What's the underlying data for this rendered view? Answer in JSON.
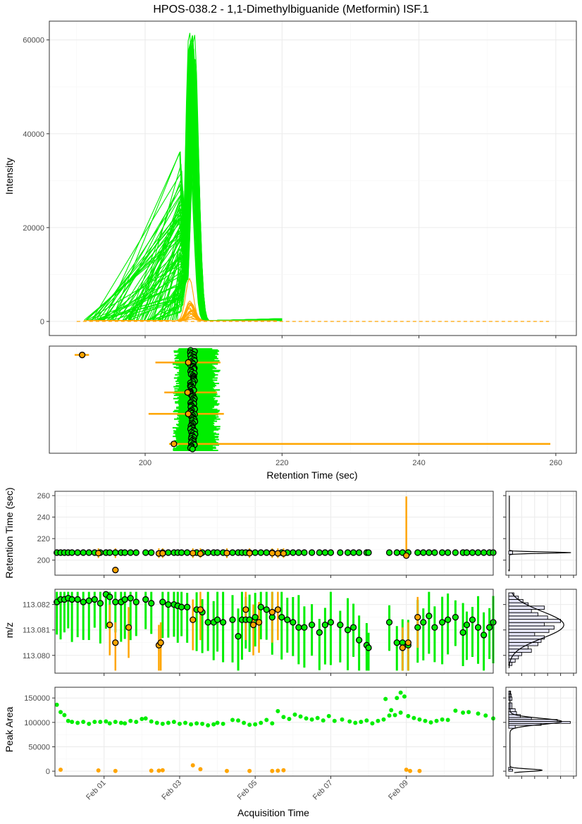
{
  "title": "HPOS-038.2 - 1,1-Dimethylbiguanide (Metformin) ISF.1",
  "colors": {
    "good": "#00ee00",
    "flagged": "#ffa500",
    "hist_fill": "#e6e6fa",
    "outline": "#000000"
  },
  "chart_data": [
    {
      "id": "eic",
      "type": "line",
      "ylabel": "Intensity",
      "xlim": [
        186,
        263
      ],
      "ylim": [
        -3000,
        64000
      ],
      "yticks": [
        0,
        20000,
        40000,
        60000
      ],
      "ytick_labels": [
        "0",
        "20000",
        "40000",
        "60000"
      ],
      "xticks": [
        200,
        220,
        240,
        260
      ],
      "grid": true,
      "series": [
        {
          "color": "good",
          "count": 95,
          "apex_rt_range": [
            206.4,
            207.2
          ],
          "apex_intensity_range": [
            34000,
            62500
          ],
          "start_rt_range": [
            191,
            205
          ],
          "end_rt": 220
        },
        {
          "color": "flagged",
          "count": 20,
          "apex_rt_range": [
            206.3,
            207.0
          ],
          "apex_intensity_range": [
            300,
            9000
          ],
          "start_rt": 190,
          "end_rt": 259
        }
      ]
    },
    {
      "id": "rt_ranges",
      "type": "scatter",
      "xlabel": "Retention Time (sec)",
      "xlim": [
        186,
        263
      ],
      "xticks": [
        200,
        220,
        240,
        260
      ],
      "xtick_labels": [
        "200",
        "220",
        "240",
        "260"
      ],
      "description_series": "horizontal peak-boundary ranges with apex points",
      "good_range": [
        204,
        211
      ],
      "good_apex_range": [
        206.6,
        207.3
      ],
      "flagged_rows": [
        {
          "apex": 190.8,
          "start": 189.7,
          "end": 191.8,
          "row": 0.03
        },
        {
          "apex": 206.3,
          "start": 201.5,
          "end": 211.0,
          "row": 0.1
        },
        {
          "apex": 206.2,
          "start": 202.8,
          "end": 210.5,
          "row": 0.38
        },
        {
          "apex": 206.3,
          "start": 200.5,
          "end": 211.5,
          "row": 0.58
        },
        {
          "apex": 204.2,
          "start": 203.5,
          "end": 259.2,
          "row": 0.86
        }
      ]
    },
    {
      "id": "rt_vs_time",
      "type": "scatter",
      "ylabel": "Retention Time (sec)",
      "ylim": [
        186,
        264
      ],
      "yticks": [
        200,
        220,
        240,
        260
      ],
      "ytick_labels": [
        "200",
        "220",
        "240",
        "260"
      ],
      "good_rt": 207,
      "flagged_points": [
        {
          "day": 0.85,
          "rt": 206.5
        },
        {
          "day": 1.3,
          "rt": 190.8
        },
        {
          "day": 2.45,
          "rt": 206.2
        },
        {
          "day": 2.55,
          "rt": 206.3
        },
        {
          "day": 3.35,
          "rt": 206.5
        },
        {
          "day": 3.55,
          "rt": 206.0
        },
        {
          "day": 4.25,
          "rt": 206.6
        },
        {
          "day": 4.85,
          "rt": 206.4
        },
        {
          "day": 5.45,
          "rt": 206.5
        },
        {
          "day": 5.6,
          "rt": 206.3
        },
        {
          "day": 5.75,
          "rt": 206.2
        },
        {
          "day": 9.0,
          "rt": 204.2
        }
      ],
      "flagged_range_at": {
        "day": 9.0,
        "min": 203.5,
        "max": 259.2
      }
    },
    {
      "id": "mz_vs_time",
      "type": "scatter",
      "ylabel": "m/z",
      "ylim": [
        113.0793,
        113.0826
      ],
      "yticks": [
        113.08,
        113.081,
        113.082
      ],
      "ytick_labels": [
        "113.080",
        "113.081",
        "113.082"
      ],
      "good_points": [
        [
          -0.25,
          113.0821
        ],
        [
          -0.15,
          113.0822
        ],
        [
          -0.05,
          113.0822
        ],
        [
          0.05,
          113.08225
        ],
        [
          0.15,
          113.0822
        ],
        [
          0.3,
          113.0822
        ],
        [
          0.45,
          113.0821
        ],
        [
          0.6,
          113.08215
        ],
        [
          0.75,
          113.0822
        ],
        [
          0.9,
          113.08205
        ],
        [
          1.05,
          113.0824
        ],
        [
          1.15,
          113.0823
        ],
        [
          1.3,
          113.0821
        ],
        [
          1.45,
          113.0821
        ],
        [
          1.55,
          113.0822
        ],
        [
          1.7,
          113.08225
        ],
        [
          1.85,
          113.0821
        ],
        [
          2.1,
          113.0822
        ],
        [
          2.25,
          113.08205
        ],
        [
          2.55,
          113.0821
        ],
        [
          2.7,
          113.082
        ],
        [
          2.85,
          113.082
        ],
        [
          2.95,
          113.08195
        ],
        [
          3.05,
          113.0819
        ],
        [
          3.2,
          113.0819
        ],
        [
          3.45,
          113.0818
        ],
        [
          3.6,
          113.0817
        ],
        [
          3.75,
          113.0813
        ],
        [
          3.9,
          113.0813
        ],
        [
          4.0,
          113.0814
        ],
        [
          4.15,
          113.0813
        ],
        [
          4.4,
          113.0814
        ],
        [
          4.55,
          113.08075
        ],
        [
          4.65,
          113.0814
        ],
        [
          4.75,
          113.0814
        ],
        [
          4.85,
          113.0814
        ],
        [
          5.0,
          113.0815
        ],
        [
          5.15,
          113.0819
        ],
        [
          5.3,
          113.0818
        ],
        [
          5.45,
          113.0815
        ],
        [
          5.7,
          113.0815
        ],
        [
          5.85,
          113.0814
        ],
        [
          6.0,
          113.0813
        ],
        [
          6.15,
          113.0811
        ],
        [
          6.3,
          113.0811
        ],
        [
          6.5,
          113.0812
        ],
        [
          6.7,
          113.0809
        ],
        [
          6.85,
          113.0812
        ],
        [
          7.0,
          113.0813
        ],
        [
          7.25,
          113.0812
        ],
        [
          7.45,
          113.081
        ],
        [
          7.6,
          113.0811
        ],
        [
          7.75,
          113.0806
        ],
        [
          7.95,
          113.0804
        ],
        [
          8.0,
          113.0803
        ],
        [
          8.55,
          113.0813
        ],
        [
          8.75,
          113.0805
        ],
        [
          8.9,
          113.0805
        ],
        [
          9.05,
          113.0804
        ],
        [
          9.3,
          113.0811
        ],
        [
          9.45,
          113.0813
        ],
        [
          9.6,
          113.08155
        ],
        [
          9.75,
          113.0811
        ],
        [
          9.95,
          113.0813
        ],
        [
          10.1,
          113.0814
        ],
        [
          10.3,
          113.0815
        ],
        [
          10.5,
          113.0809
        ],
        [
          10.6,
          113.0812
        ],
        [
          10.75,
          113.0814
        ],
        [
          10.9,
          113.0811
        ],
        [
          11.05,
          113.0808
        ],
        [
          11.2,
          113.0811
        ],
        [
          11.3,
          113.0813
        ]
      ],
      "flagged_points": [
        [
          1.15,
          113.0812
        ],
        [
          1.3,
          113.0805
        ],
        [
          1.65,
          113.0811
        ],
        [
          2.45,
          113.0804
        ],
        [
          2.5,
          113.0805
        ],
        [
          3.35,
          113.0814
        ],
        [
          3.55,
          113.0818
        ],
        [
          4.75,
          113.0818
        ],
        [
          4.95,
          113.0812
        ],
        [
          5.1,
          113.0813
        ],
        [
          5.45,
          113.0817
        ],
        [
          5.6,
          113.0818
        ],
        [
          8.9,
          113.0803
        ],
        [
          9.05,
          113.0805
        ],
        [
          9.3,
          113.0815
        ]
      ]
    },
    {
      "id": "area_vs_time",
      "type": "scatter",
      "xlabel": "Acquisition Time",
      "ylabel": "Peak Area",
      "ylim": [
        -10000,
        172000
      ],
      "yticks": [
        0,
        50000,
        100000,
        150000
      ],
      "ytick_labels": [
        "0",
        "50000",
        "100000",
        "150000"
      ],
      "xlim": [
        -0.3,
        11.3
      ],
      "xticks": [
        1,
        3,
        5,
        7,
        9
      ],
      "xtick_labels": [
        "Feb 01",
        "Feb 03",
        "Feb 05",
        "Feb 07",
        "Feb 09"
      ],
      "good_points": [
        [
          -0.25,
          136000
        ],
        [
          -0.15,
          121000
        ],
        [
          -0.05,
          115000
        ],
        [
          0.05,
          103000
        ],
        [
          0.15,
          101000
        ],
        [
          0.3,
          99000
        ],
        [
          0.45,
          101000
        ],
        [
          0.6,
          97000
        ],
        [
          0.75,
          101000
        ],
        [
          0.9,
          101000
        ],
        [
          1.05,
          102000
        ],
        [
          1.15,
          98000
        ],
        [
          1.3,
          101000
        ],
        [
          1.45,
          99000
        ],
        [
          1.55,
          98000
        ],
        [
          1.7,
          103000
        ],
        [
          1.85,
          101000
        ],
        [
          2.0,
          107000
        ],
        [
          2.1,
          108000
        ],
        [
          2.25,
          102000
        ],
        [
          2.4,
          99000
        ],
        [
          2.55,
          97000
        ],
        [
          2.7,
          99000
        ],
        [
          2.85,
          101000
        ],
        [
          3.0,
          97000
        ],
        [
          3.15,
          99000
        ],
        [
          3.3,
          96000
        ],
        [
          3.45,
          98000
        ],
        [
          3.6,
          97000
        ],
        [
          3.75,
          94000
        ],
        [
          3.9,
          96000
        ],
        [
          4.0,
          99000
        ],
        [
          4.15,
          97000
        ],
        [
          4.4,
          105000
        ],
        [
          4.55,
          104000
        ],
        [
          4.7,
          99000
        ],
        [
          4.85,
          95000
        ],
        [
          5.0,
          96000
        ],
        [
          5.15,
          99000
        ],
        [
          5.3,
          105000
        ],
        [
          5.45,
          98000
        ],
        [
          5.6,
          123000
        ],
        [
          5.75,
          111000
        ],
        [
          5.9,
          107000
        ],
        [
          6.05,
          116000
        ],
        [
          6.2,
          112000
        ],
        [
          6.35,
          108000
        ],
        [
          6.5,
          106000
        ],
        [
          6.65,
          109000
        ],
        [
          6.8,
          104000
        ],
        [
          6.95,
          113000
        ],
        [
          7.1,
          103000
        ],
        [
          7.3,
          106000
        ],
        [
          7.5,
          102000
        ],
        [
          7.65,
          99000
        ],
        [
          7.8,
          101000
        ],
        [
          7.95,
          104000
        ],
        [
          8.1,
          98000
        ],
        [
          8.25,
          103000
        ],
        [
          8.4,
          106000
        ],
        [
          8.55,
          114000
        ],
        [
          8.7,
          115000
        ],
        [
          8.85,
          120000
        ],
        [
          8.95,
          153000
        ],
        [
          8.45,
          148000
        ],
        [
          8.6,
          125000
        ],
        [
          8.75,
          150000
        ],
        [
          8.85,
          161000
        ],
        [
          9.05,
          113000
        ],
        [
          9.2,
          109000
        ],
        [
          9.35,
          106000
        ],
        [
          9.5,
          103000
        ],
        [
          9.65,
          100000
        ],
        [
          9.8,
          103000
        ],
        [
          9.95,
          106000
        ],
        [
          10.1,
          105000
        ],
        [
          10.3,
          124000
        ],
        [
          10.5,
          120000
        ],
        [
          10.65,
          121000
        ],
        [
          10.9,
          118000
        ],
        [
          11.1,
          114000
        ],
        [
          11.3,
          108000
        ]
      ],
      "flagged_points": [
        [
          -0.15,
          3000
        ],
        [
          0.85,
          1500
        ],
        [
          1.3,
          500
        ],
        [
          2.25,
          1000
        ],
        [
          2.45,
          1000
        ],
        [
          2.55,
          2000
        ],
        [
          3.35,
          12000
        ],
        [
          3.55,
          4000
        ],
        [
          4.25,
          500
        ],
        [
          4.85,
          500
        ],
        [
          5.45,
          500
        ],
        [
          5.6,
          1000
        ],
        [
          5.75,
          2000
        ],
        [
          9.0,
          3000
        ],
        [
          9.1,
          500
        ],
        [
          9.35,
          500
        ]
      ]
    }
  ],
  "labels": {
    "eic_ylabel": "Intensity",
    "rt_xlabel": "Retention Time (sec)",
    "rt_ylabel": "Retention Time (sec)",
    "mz_ylabel": "m/z",
    "area_ylabel": "Peak Area",
    "time_xlabel": "Acquisition Time"
  }
}
